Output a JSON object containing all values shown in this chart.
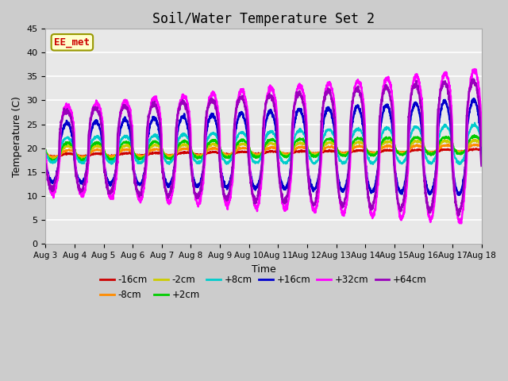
{
  "title": "Soil/Water Temperature Set 2",
  "xlabel": "Time",
  "ylabel": "Temperature (C)",
  "ylim": [
    0,
    45
  ],
  "yticks": [
    0,
    5,
    10,
    15,
    20,
    25,
    30,
    35,
    40,
    45
  ],
  "date_labels": [
    "Aug 3",
    "Aug 4",
    "Aug 5",
    "Aug 6",
    "Aug 7",
    "Aug 8",
    "Aug 9",
    "Aug 10",
    "Aug 11",
    "Aug 12",
    "Aug 13",
    "Aug 14",
    "Aug 15",
    "Aug 16",
    "Aug 17",
    "Aug 18"
  ],
  "n_days": 15,
  "series_order": [
    "-16cm",
    "-8cm",
    "-2cm",
    "+2cm",
    "+8cm",
    "+16cm",
    "+32cm",
    "+64cm"
  ],
  "series_colors": {
    "-16cm": "#cc0000",
    "-8cm": "#ff8c00",
    "-2cm": "#cccc00",
    "+2cm": "#00cc00",
    "+8cm": "#00cccc",
    "+16cm": "#0000cc",
    "+32cm": "#ff00ff",
    "+64cm": "#9900bb"
  },
  "series_lw": {
    "-16cm": 1.5,
    "-8cm": 1.5,
    "-2cm": 1.5,
    "+2cm": 1.5,
    "+8cm": 1.5,
    "+16cm": 1.8,
    "+32cm": 1.8,
    "+64cm": 1.8
  },
  "watermark": "EE_met",
  "watermark_fg": "#cc0000",
  "watermark_bg": "#ffffcc",
  "watermark_edge": "#999900",
  "fig_bg": "#cccccc",
  "plot_bg": "#e8e8e8",
  "grid_color": "#ffffff"
}
